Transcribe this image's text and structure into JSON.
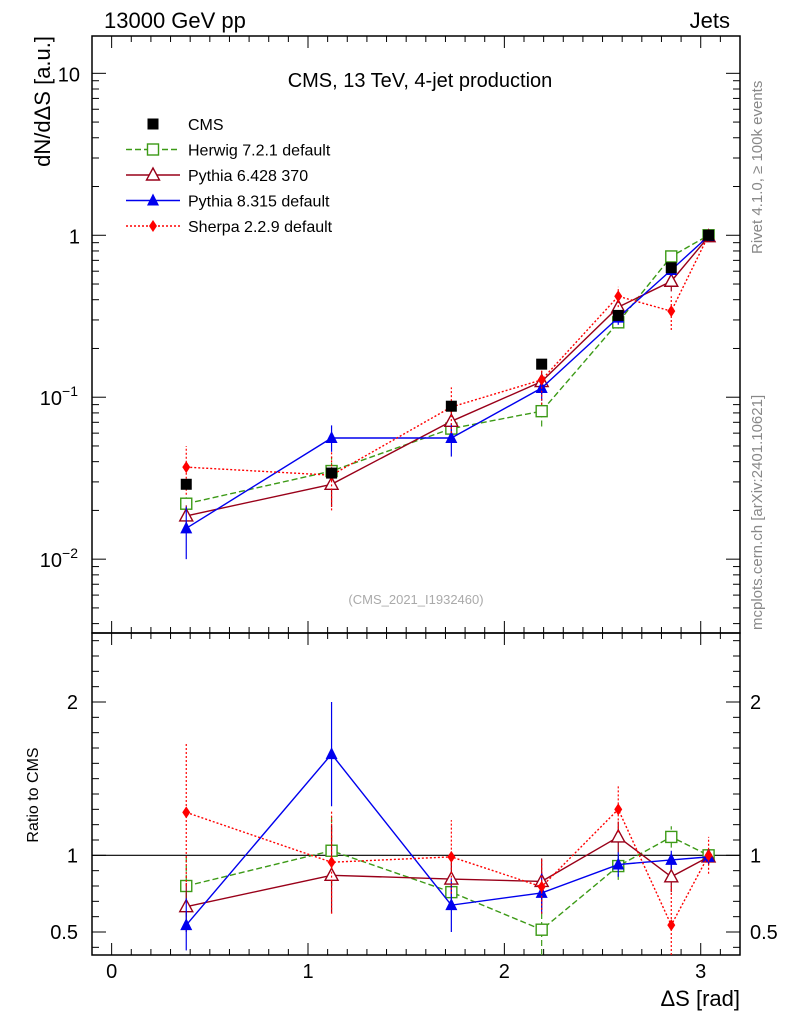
{
  "header": {
    "left_label": "13000 GeV pp",
    "right_label": "Jets"
  },
  "side_labels": {
    "rivet": "Rivet 4.1.0, ≥ 100k events",
    "mcplots": "mcplots.cern.ch [arXiv:2401.10621]"
  },
  "chart_data": [
    {
      "type": "line",
      "title": "CMS, 13 TeV, 4-jet production",
      "xlabel": "",
      "ylabel": "dN/dΔS [a.u.]",
      "yscale": "log",
      "xlim": [
        -0.1,
        3.2
      ],
      "ylim": [
        0.0035,
        17
      ],
      "watermark": "(CMS_2021_I1932460)",
      "y_ticks": [
        {
          "value": 0.01,
          "base": "10",
          "exp": "−2"
        },
        {
          "value": 0.1,
          "base": "10",
          "exp": "−1"
        },
        {
          "value": 1,
          "base": "1",
          "exp": ""
        },
        {
          "value": 10,
          "base": "10",
          "exp": ""
        }
      ],
      "x": [
        0.38,
        1.12,
        1.73,
        2.19,
        2.58,
        2.85,
        3.04
      ],
      "series": [
        {
          "name": "CMS",
          "color": "#000000",
          "values": [
            0.029,
            0.034,
            0.088,
            0.16,
            0.32,
            0.63,
            1.0
          ]
        },
        {
          "name": "Herwig 7.2.1 default",
          "color": "#3c9a16",
          "values": [
            0.022,
            0.035,
            0.064,
            0.082,
            0.29,
            0.74,
            1.0
          ],
          "err_lo": [
            0.0195,
            0.028,
            0.055,
            0.066,
            0.265,
            0.69,
            0.96
          ],
          "err_hi": [
            0.0245,
            0.043,
            0.073,
            0.098,
            0.315,
            0.79,
            1.04
          ]
        },
        {
          "name": "Pythia 6.428 370",
          "color": "#990019",
          "values": [
            0.0185,
            0.029,
            0.071,
            0.125,
            0.36,
            0.52,
            0.98
          ],
          "err_lo": [
            0.0155,
            0.021,
            0.061,
            0.105,
            0.33,
            0.45,
            0.93
          ],
          "err_hi": [
            0.0215,
            0.037,
            0.081,
            0.145,
            0.39,
            0.59,
            1.03
          ]
        },
        {
          "name": "Pythia 8.315 default",
          "color": "#0000ee",
          "values": [
            0.0155,
            0.056,
            0.056,
            0.114,
            0.31,
            0.61,
            0.99
          ],
          "err_lo": [
            0.01,
            0.046,
            0.043,
            0.095,
            0.28,
            0.56,
            0.94
          ],
          "err_hi": [
            0.021,
            0.067,
            0.069,
            0.133,
            0.34,
            0.66,
            1.04
          ]
        },
        {
          "name": "Sherpa 2.2.9 default",
          "color": "#ff0000",
          "values": [
            0.037,
            0.033,
            0.087,
            0.128,
            0.42,
            0.34,
            1.0
          ],
          "err_lo": [
            0.025,
            0.02,
            0.06,
            0.09,
            0.36,
            0.26,
            0.93
          ],
          "err_hi": [
            0.05,
            0.046,
            0.115,
            0.166,
            0.48,
            0.42,
            1.07
          ]
        }
      ]
    },
    {
      "type": "line",
      "xlabel": "ΔS [rad]",
      "ylabel": "Ratio to CMS",
      "xlim": [
        -0.1,
        3.2
      ],
      "ylim": [
        0.35,
        2.45
      ],
      "x_ticks": [
        0,
        1,
        2,
        3
      ],
      "y_ticks": [
        0.5,
        1,
        2
      ],
      "reference_line": 1,
      "x": [
        0.38,
        1.12,
        1.73,
        2.19,
        2.58,
        2.85,
        3.04
      ],
      "series": [
        {
          "name": "Herwig 7.2.1 default",
          "color": "#3c9a16",
          "values": [
            0.8,
            1.03,
            0.76,
            0.515,
            0.93,
            1.12,
            1.0
          ],
          "err_lo": [
            0.6,
            0.8,
            0.66,
            0.3,
            0.84,
            1.05,
            0.96
          ],
          "err_hi": [
            1.0,
            1.27,
            0.86,
            0.73,
            1.02,
            1.19,
            1.04
          ]
        },
        {
          "name": "Pythia 6.428 370",
          "color": "#990019",
          "values": [
            0.665,
            0.87,
            0.845,
            0.83,
            1.12,
            0.86,
            0.99
          ],
          "err_lo": [
            0.5,
            0.62,
            0.7,
            0.68,
            1.02,
            0.76,
            0.94
          ],
          "err_hi": [
            0.82,
            1.2,
            0.99,
            0.98,
            1.22,
            0.96,
            1.04
          ]
        },
        {
          "name": "Pythia 8.315 default",
          "color": "#0000ee",
          "values": [
            0.545,
            1.66,
            0.675,
            0.755,
            0.94,
            0.97,
            0.99
          ],
          "err_lo": [
            0.38,
            1.32,
            0.5,
            0.62,
            0.86,
            0.91,
            0.94
          ],
          "err_hi": [
            0.72,
            2.0,
            0.85,
            0.89,
            1.02,
            1.03,
            1.04
          ]
        },
        {
          "name": "Sherpa 2.2.9 default",
          "color": "#ff0000",
          "values": [
            1.28,
            0.955,
            0.99,
            0.795,
            1.3,
            0.545,
            1.0
          ],
          "err_lo": [
            0.8,
            0.62,
            0.75,
            0.62,
            1.15,
            0.3,
            0.88
          ],
          "err_hi": [
            1.73,
            1.29,
            1.23,
            0.97,
            1.45,
            0.8,
            1.12
          ]
        }
      ]
    }
  ]
}
